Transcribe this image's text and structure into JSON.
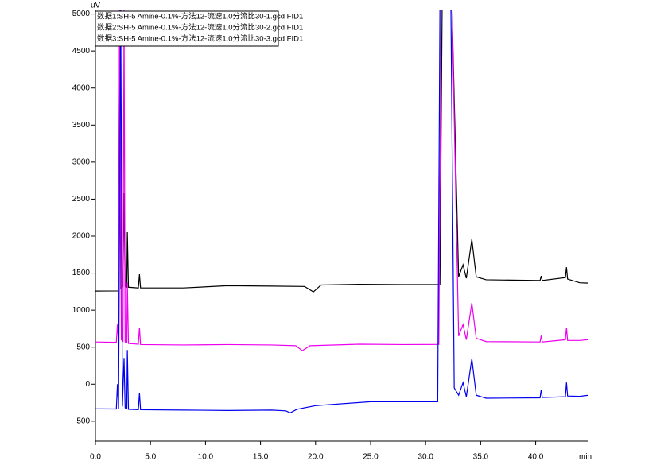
{
  "chart_data": {
    "type": "line",
    "y_label": "uV",
    "x_label": "min",
    "xlim": [
      0,
      44.8
    ],
    "ylim": [
      -770,
      5060
    ],
    "xticks": [
      {
        "value": 0,
        "label": "0.0"
      },
      {
        "value": 5,
        "label": "5.0"
      },
      {
        "value": 10,
        "label": "10.0"
      },
      {
        "value": 15,
        "label": "15.0"
      },
      {
        "value": 20,
        "label": "20.0"
      },
      {
        "value": 25,
        "label": "25.0"
      },
      {
        "value": 30,
        "label": "30.0"
      },
      {
        "value": 35,
        "label": "35.0"
      },
      {
        "value": 40,
        "label": "40.0"
      }
    ],
    "yticks": [
      -500,
      0,
      500,
      1000,
      1500,
      2000,
      2500,
      3000,
      3500,
      4000,
      4500,
      5000
    ],
    "series": [
      {
        "name": "数据1:SH-5 Amine-0.1%-方法12-流速1.0分流比30-1.gcd FID1",
        "color": "#000000",
        "x": [
          0,
          2.1,
          2.2,
          2.3,
          2.5,
          2.6,
          2.7,
          2.85,
          2.9,
          3.0,
          3.9,
          4.0,
          4.1,
          8,
          12,
          16,
          19,
          19.8,
          20.5,
          24,
          28,
          31.3,
          31.5,
          32.4,
          33.0,
          33.4,
          33.7,
          34.2,
          34.6,
          35.5,
          40.4,
          40.5,
          40.6,
          42.7,
          42.8,
          42.9,
          44,
          44.8
        ],
        "values": [
          1258,
          1260,
          5060,
          1300,
          1320,
          2580,
          1320,
          1310,
          2054,
          1310,
          1300,
          1484,
          1300,
          1300,
          1330,
          1325,
          1320,
          1247,
          1340,
          1350,
          1345,
          1345,
          5060,
          5060,
          1450,
          1613,
          1430,
          1957,
          1450,
          1410,
          1400,
          1462,
          1400,
          1440,
          1580,
          1420,
          1370,
          1365
        ]
      },
      {
        "name": "数据2:SH-5 Amine-0.1%-方法12-流速1.0分流比30-2.gcd FID1",
        "color": "#ee00ee",
        "x": [
          0,
          1.9,
          2.0,
          2.1,
          2.2,
          2.35,
          2.5,
          2.6,
          2.7,
          2.85,
          2.9,
          3.0,
          3.9,
          4.0,
          4.1,
          8,
          12,
          16,
          18.2,
          18.8,
          19.5,
          24,
          28,
          31.2,
          31.4,
          32.4,
          33.0,
          33.4,
          33.7,
          34.2,
          34.6,
          35.5,
          40.4,
          40.5,
          40.6,
          42.7,
          42.8,
          42.9,
          44,
          44.8
        ],
        "values": [
          570,
          565,
          806,
          560,
          5060,
          600,
          580,
          5060,
          570,
          560,
          1376,
          550,
          540,
          763,
          535,
          530,
          535,
          530,
          520,
          452,
          520,
          540,
          535,
          537,
          5060,
          5060,
          650,
          806,
          600,
          1097,
          620,
          575,
          570,
          656,
          570,
          600,
          763,
          590,
          590,
          602
        ]
      },
      {
        "name": "数据3:SH-5 Amine-0.1%-方法12-流速1.0分流比30-3.gcd FID1",
        "color": "#0000ee",
        "x": [
          0,
          1.9,
          2.0,
          2.1,
          2.3,
          2.45,
          2.6,
          2.7,
          2.85,
          2.9,
          3.0,
          3.9,
          4.0,
          4.1,
          8,
          12,
          16,
          17.3,
          17.7,
          18.3,
          20,
          25,
          31.1,
          31.3,
          32.3,
          32.6,
          33.0,
          33.4,
          33.7,
          34.2,
          34.6,
          35.5,
          40.4,
          40.5,
          40.6,
          42.7,
          42.8,
          42.9,
          44,
          44.8
        ],
        "values": [
          -333,
          -335,
          0,
          -330,
          5060,
          -300,
          355,
          -320,
          -330,
          462,
          -340,
          -345,
          -118,
          -345,
          -350,
          -355,
          -350,
          -360,
          -387,
          -340,
          -290,
          -237,
          -237,
          5060,
          5060,
          -50,
          -150,
          22,
          -170,
          344,
          -150,
          -190,
          -185,
          -75,
          -180,
          -170,
          22,
          -160,
          -165,
          -150
        ]
      }
    ]
  }
}
